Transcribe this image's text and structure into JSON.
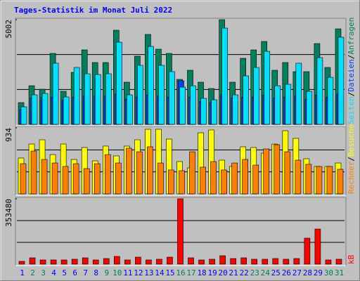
{
  "chart_data": [
    {
      "type": "bar",
      "title": "Tages-Statistik im Monat Juli 2022",
      "legend_separator": "/",
      "ylim": [
        0,
        5002
      ],
      "yticks": [
        5002
      ],
      "series": [
        {
          "name": "Anfragen",
          "color": "#00805c",
          "values": [
            1040,
            1846,
            1678,
            3390,
            1578,
            2484,
            3558,
            2954,
            2954,
            4498,
            2014,
            3256,
            4297,
            3592,
            3390,
            2148,
            2585,
            2014,
            1712,
            5002,
            2014,
            3156,
            3558,
            3961,
            2585,
            2954,
            2518,
            2518,
            3860,
            2719,
            4565
          ]
        },
        {
          "name": "Dateien",
          "color": "#0040ff",
          "values": [
            700,
            1250,
            1300,
            1300,
            1150,
            1300,
            1350,
            1350,
            1350,
            1450,
            1200,
            1300,
            1400,
            1350,
            1300,
            2081,
            1300,
            1100,
            1050,
            1450,
            1250,
            1300,
            1300,
            1400,
            1250,
            1300,
            1350,
            1200,
            1400,
            1300,
            1450
          ]
        },
        {
          "name": "Seiten",
          "color": "#00e0ff",
          "values": [
            839,
            1410,
            1477,
            2921,
            1309,
            2719,
            2417,
            2383,
            2417,
            3927,
            1410,
            2820,
            3726,
            2820,
            2518,
            1779,
            1846,
            1242,
            1175,
            4599,
            1410,
            2316,
            2719,
            3491,
            1846,
            1913,
            2921,
            1578,
            3189,
            2249,
            4163
          ]
        }
      ]
    },
    {
      "type": "bar",
      "legend_separator": "/",
      "ylim": [
        0,
        934
      ],
      "yticks": [
        934
      ],
      "series": [
        {
          "name": "Besuche",
          "color": "#ffff00",
          "values": [
            507,
            705,
            765,
            556,
            705,
            487,
            656,
            467,
            676,
            537,
            676,
            765,
            914,
            914,
            775,
            457,
            368,
            864,
            904,
            477,
            388,
            666,
            656,
            576,
            705,
            894,
            785,
            497,
            388,
            388,
            437
          ]
        },
        {
          "name": "Rechner",
          "color": "#ff8000",
          "values": [
            427,
            606,
            487,
            437,
            388,
            427,
            358,
            427,
            556,
            437,
            646,
            596,
            666,
            437,
            338,
            328,
            596,
            378,
            457,
            338,
            437,
            487,
            407,
            636,
            696,
            596,
            477,
            418,
            388,
            388,
            348
          ]
        }
      ]
    },
    {
      "type": "bar",
      "ylim": [
        0,
        353480
      ],
      "yticks": [
        353480
      ],
      "categories": [
        "1",
        "2",
        "3",
        "4",
        "5",
        "6",
        "7",
        "8",
        "9",
        "10",
        "11",
        "12",
        "13",
        "14",
        "15",
        "16",
        "17",
        "18",
        "19",
        "20",
        "21",
        "22",
        "23",
        "24",
        "25",
        "26",
        "27",
        "28",
        "29",
        "30",
        "31"
      ],
      "category_colors": [
        "#0000ff",
        "#00805c",
        "#00805c",
        "#0000ff",
        "#0000ff",
        "#0000ff",
        "#0000ff",
        "#0000ff",
        "#00805c",
        "#00805c",
        "#0000ff",
        "#0000ff",
        "#0000ff",
        "#0000ff",
        "#0000ff",
        "#00805c",
        "#00805c",
        "#0000ff",
        "#0000ff",
        "#0000ff",
        "#0000ff",
        "#0000ff",
        "#00805c",
        "#00805c",
        "#0000ff",
        "#0000ff",
        "#0000ff",
        "#0000ff",
        "#0000ff",
        "#00805c",
        "#00805c"
      ],
      "series": [
        {
          "name": "kB",
          "color": "#ff0000",
          "values": [
            15200,
            34200,
            22800,
            22800,
            22800,
            26600,
            34200,
            22800,
            30400,
            41800,
            22800,
            38000,
            22800,
            26600,
            38000,
            353480,
            34200,
            22800,
            26600,
            45600,
            30400,
            34200,
            26600,
            26600,
            30400,
            26600,
            30400,
            140700,
            190000,
            22800,
            26600
          ]
        }
      ]
    }
  ]
}
